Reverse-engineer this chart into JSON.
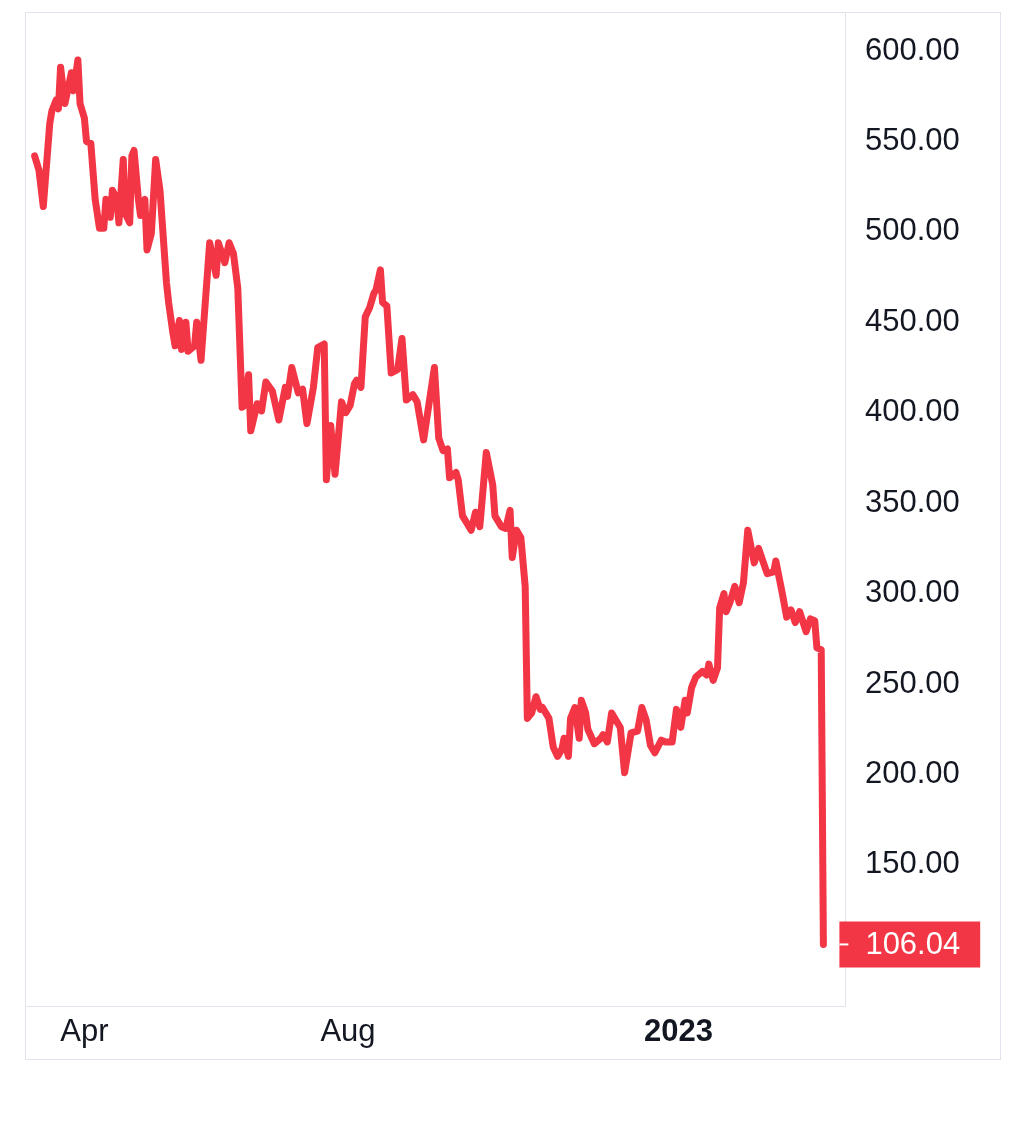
{
  "chart_data": {
    "type": "line",
    "color": "#f23645",
    "line_style": "solid",
    "x": [
      "2022-03-09",
      "2022-03-11",
      "2022-03-13",
      "2022-03-16",
      "2022-03-17",
      "2022-03-19",
      "2022-03-20",
      "2022-03-21",
      "2022-03-23",
      "2022-03-26",
      "2022-03-27",
      "2022-03-29",
      "2022-03-30",
      "2022-04-01",
      "2022-04-02",
      "2022-04-04",
      "2022-04-06",
      "2022-04-08",
      "2022-04-10",
      "2022-04-11",
      "2022-04-13",
      "2022-04-14",
      "2022-04-16",
      "2022-04-17",
      "2022-04-19",
      "2022-04-20",
      "2022-04-22",
      "2022-04-23",
      "2022-04-24",
      "2022-04-26",
      "2022-04-27",
      "2022-04-29",
      "2022-04-30",
      "2022-05-02",
      "2022-05-04",
      "2022-05-06",
      "2022-05-09",
      "2022-05-10",
      "2022-05-12",
      "2022-05-13",
      "2022-05-15",
      "2022-05-16",
      "2022-05-18",
      "2022-05-19",
      "2022-05-22",
      "2022-05-23",
      "2022-05-25",
      "2022-05-29",
      "2022-06-01",
      "2022-06-02",
      "2022-06-05",
      "2022-06-07",
      "2022-06-09",
      "2022-06-11",
      "2022-06-13",
      "2022-06-14",
      "2022-06-16",
      "2022-06-17",
      "2022-06-20",
      "2022-06-22",
      "2022-06-24",
      "2022-06-27",
      "2022-06-30",
      "2022-07-03",
      "2022-07-04",
      "2022-07-06",
      "2022-07-09",
      "2022-07-11",
      "2022-07-13",
      "2022-07-16",
      "2022-07-18",
      "2022-07-21",
      "2022-07-22",
      "2022-07-24",
      "2022-07-26",
      "2022-07-29",
      "2022-07-31",
      "2022-08-02",
      "2022-08-04",
      "2022-08-05",
      "2022-08-07",
      "2022-08-09",
      "2022-08-11",
      "2022-08-13",
      "2022-08-14",
      "2022-08-16",
      "2022-08-17",
      "2022-08-19",
      "2022-08-21",
      "2022-08-24",
      "2022-08-26",
      "2022-08-28",
      "2022-08-31",
      "2022-09-02",
      "2022-09-05",
      "2022-09-10",
      "2022-09-12",
      "2022-09-14",
      "2022-09-16",
      "2022-09-17",
      "2022-09-20",
      "2022-09-21",
      "2022-09-23",
      "2022-09-25",
      "2022-09-27",
      "2022-09-29",
      "2022-10-01",
      "2022-10-04",
      "2022-10-07",
      "2022-10-08",
      "2022-10-11",
      "2022-10-13",
      "2022-10-15",
      "2022-10-16",
      "2022-10-18",
      "2022-10-20",
      "2022-10-22",
      "2022-10-23",
      "2022-10-25",
      "2022-10-27",
      "2022-10-29",
      "2022-10-30",
      "2022-11-02",
      "2022-11-04",
      "2022-11-06",
      "2022-11-08",
      "2022-11-09",
      "2022-11-11",
      "2022-11-12",
      "2022-11-14",
      "2022-11-16",
      "2022-11-17",
      "2022-11-19",
      "2022-11-20",
      "2022-11-23",
      "2022-11-26",
      "2022-11-27",
      "2022-11-29",
      "2022-12-01",
      "2022-12-05",
      "2022-12-07",
      "2022-12-10",
      "2022-12-13",
      "2022-12-15",
      "2022-12-17",
      "2022-12-19",
      "2022-12-21",
      "2022-12-24",
      "2022-12-26",
      "2022-12-29",
      "2022-12-31",
      "2023-01-02",
      "2023-01-04",
      "2023-01-05",
      "2023-01-07",
      "2023-01-09",
      "2023-01-12",
      "2023-01-14",
      "2023-01-15",
      "2023-01-17",
      "2023-01-19",
      "2023-01-20",
      "2023-01-22",
      "2023-01-23",
      "2023-01-25",
      "2023-01-27",
      "2023-01-29",
      "2023-01-31",
      "2023-02-02",
      "2023-02-05",
      "2023-02-07",
      "2023-02-09",
      "2023-02-11",
      "2023-02-14",
      "2023-02-15",
      "2023-02-18",
      "2023-02-20",
      "2023-02-22",
      "2023-02-24",
      "2023-02-26",
      "2023-03-01",
      "2023-03-03",
      "2023-03-05",
      "2023-03-06",
      "2023-03-08",
      "2023-03-09"
    ],
    "values": [
      542,
      534,
      514,
      560,
      567,
      573,
      568,
      591,
      571,
      588,
      578,
      595,
      571,
      563,
      550,
      549,
      518,
      502,
      502,
      518,
      508,
      523,
      518,
      505,
      540,
      510,
      505,
      542,
      545,
      518,
      509,
      518,
      490,
      499,
      540,
      523,
      472,
      461,
      444,
      437,
      451,
      435,
      450,
      434,
      437,
      450,
      429,
      494,
      476,
      494,
      483,
      494,
      488,
      469,
      403,
      404,
      421,
      390,
      405,
      401,
      417,
      412,
      396,
      414,
      409,
      425,
      411,
      413,
      394,
      414,
      436,
      438,
      363,
      393,
      366,
      406,
      400,
      404,
      416,
      418,
      414,
      453,
      458,
      466,
      468,
      479,
      461,
      459,
      422,
      424,
      441,
      407,
      410,
      406,
      385,
      425,
      386,
      379,
      380,
      364,
      367,
      363,
      343,
      339,
      335,
      345,
      337,
      378,
      360,
      343,
      337,
      336,
      346,
      320,
      335,
      331,
      304,
      231,
      234,
      243,
      236,
      237,
      231,
      215,
      210,
      214,
      220,
      210,
      231,
      237,
      220,
      241,
      234,
      225,
      217,
      220,
      222,
      218,
      234,
      226,
      201,
      223,
      224,
      237,
      230,
      216,
      212,
      219,
      218,
      218,
      236,
      226,
      241,
      234,
      248,
      254,
      257,
      255,
      261,
      252,
      259,
      292,
      300,
      290,
      296,
      304,
      295,
      306,
      335,
      317,
      325,
      318,
      311,
      312,
      318,
      300,
      287,
      291,
      284,
      290,
      279,
      286,
      285,
      270,
      269,
      106.04
    ],
    "xlim": [
      "2022-03-05",
      "2023-03-19"
    ],
    "xticks": [
      {
        "value": "2022-04-01",
        "label": "Apr"
      },
      {
        "value": "2022-08-01",
        "label": "Aug"
      },
      {
        "value": "2023-01-01",
        "label": "2023"
      }
    ],
    "ylim": [
      72,
      621
    ],
    "yticks": [
      {
        "value": 150,
        "label": "150.00"
      },
      {
        "value": 200,
        "label": "200.00"
      },
      {
        "value": 250,
        "label": "250.00"
      },
      {
        "value": 300,
        "label": "300.00"
      },
      {
        "value": 350,
        "label": "350.00"
      },
      {
        "value": 400,
        "label": "400.00"
      },
      {
        "value": 450,
        "label": "450.00"
      },
      {
        "value": 500,
        "label": "500.00"
      },
      {
        "value": 550,
        "label": "550.00"
      },
      {
        "value": 600,
        "label": "600.00"
      }
    ],
    "annotations": [
      {
        "text": "106.04",
        "x": "2023-03-09",
        "y": 106.04
      }
    ]
  }
}
